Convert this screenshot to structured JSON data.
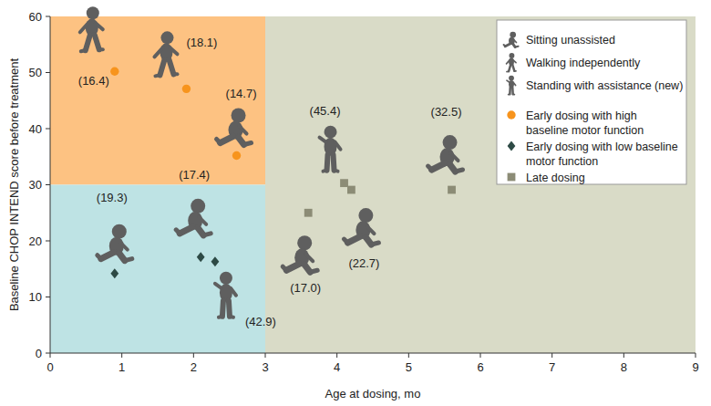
{
  "chart_data": {
    "type": "scatter",
    "xlabel": "Age at dosing, mo",
    "ylabel": "Baseline CHOP INTEND score before treatment",
    "xlim": [
      0,
      9
    ],
    "ylim": [
      0,
      60
    ],
    "xticks": [
      0,
      1,
      2,
      3,
      4,
      5,
      6,
      7,
      8,
      9
    ],
    "yticks": [
      0,
      10,
      20,
      30,
      40,
      50,
      60
    ],
    "grid": false,
    "legend": "upper right",
    "milestone_legend": [
      "Sitting unassisted",
      "Walking independently",
      "Standing with assistance (new)"
    ],
    "regions": [
      {
        "x": [
          0,
          3
        ],
        "y": [
          30,
          60
        ],
        "color": "#fdc282"
      },
      {
        "x": [
          0,
          3
        ],
        "y": [
          0,
          30
        ],
        "color": "#bee3e4"
      },
      {
        "x": [
          3,
          9
        ],
        "y": [
          0,
          60
        ],
        "color": "#d9dbc7"
      }
    ],
    "series": [
      {
        "name": "Early dosing with high baseline motor function",
        "color": "#f7941d",
        "marker": "circle",
        "x": [
          0.9,
          1.9,
          2.6
        ],
        "values": [
          50.2,
          47.1,
          35.2
        ],
        "labels": [
          "(16.4)",
          "(18.1)",
          "(14.7)"
        ],
        "milestones": [
          1,
          1,
          0
        ]
      },
      {
        "name": "Early dosing with low baseline motor function",
        "color": "#2d4a45",
        "marker": "diamond",
        "x": [
          0.9,
          2.1,
          2.3
        ],
        "values": [
          14.2,
          17.1,
          16.3
        ],
        "labels": [
          "(19.3)",
          "(17.4)",
          "(42.9)"
        ],
        "milestones": [
          0,
          0,
          2
        ]
      },
      {
        "name": "Late dosing",
        "color": "#8c8c76",
        "marker": "square",
        "x": [
          3.6,
          4.1,
          4.2,
          5.6
        ],
        "values": [
          25,
          30.3,
          29.1,
          29.1
        ],
        "labels": [
          "(17.0)",
          "(45.4)",
          "(22.7)",
          "(32.5)"
        ],
        "milestones": [
          0,
          2,
          0,
          0
        ]
      }
    ]
  }
}
